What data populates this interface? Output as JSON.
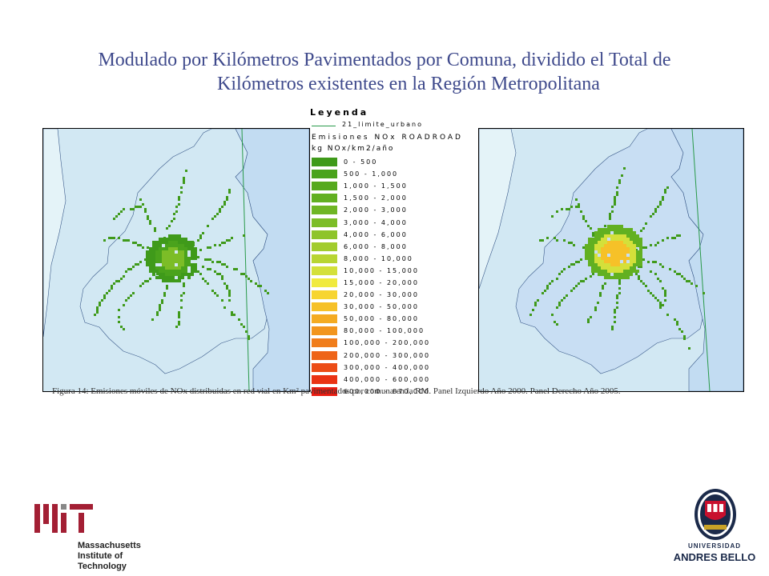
{
  "title": {
    "line1": "Modulado por Kilómetros Pavimentados por Comuna,  dividido el Total de",
    "line2": "Kilómetros existentes en la Región Metropolitana"
  },
  "legend": {
    "title": "Leyenda",
    "line_label": "21_limite_urbano",
    "layer_label": "Emisiones NOx ROADROAD",
    "unit_label": "kg NOx/km2/año",
    "classes": [
      {
        "label": "0 - 500",
        "color": "#3f9a1a"
      },
      {
        "label": "500 - 1,000",
        "color": "#4aa31c"
      },
      {
        "label": "1,000 - 1,500",
        "color": "#56a91e"
      },
      {
        "label": "1,500 - 2,000",
        "color": "#62b021"
      },
      {
        "label": "2,000 - 3,000",
        "color": "#6fb624"
      },
      {
        "label": "3,000 - 4,000",
        "color": "#7cbd27"
      },
      {
        "label": "4,000 - 6,000",
        "color": "#8ec42a"
      },
      {
        "label": "6,000 - 8,000",
        "color": "#a2cc2e"
      },
      {
        "label": "8,000 - 10,000",
        "color": "#b8d533"
      },
      {
        "label": "10,000 - 15,000",
        "color": "#d4e03a"
      },
      {
        "label": "15,000 - 20,000",
        "color": "#f0ea3e"
      },
      {
        "label": "20,000 - 30,000",
        "color": "#f7d531"
      },
      {
        "label": "30,000 - 50,000",
        "color": "#f6c128"
      },
      {
        "label": "50,000 - 80,000",
        "color": "#f4ab22"
      },
      {
        "label": "80,000 - 100,000",
        "color": "#f2951e"
      },
      {
        "label": "100,000 - 200,000",
        "color": "#f07d1b"
      },
      {
        "label": "200,000 - 300,000",
        "color": "#ee6418"
      },
      {
        "label": "300,000 - 400,000",
        "color": "#ec4c16"
      },
      {
        "label": "400,000 - 600,000",
        "color": "#ea3314"
      },
      {
        "label": "600,000 - 870,000",
        "color": "#e81d12"
      }
    ]
  },
  "caption": "Figura 14: Emisiones móviles de NOx distribuidas en red vial en Km² pavimentados por comuna en la RM.  Panel Izquierdo Año 2000. Panel Derecho Año 2005.",
  "logos": {
    "mit_line1": "Massachusetts",
    "mit_line2": "Institute of",
    "mit_line3": "Technology",
    "unab_line1": "UNIVERSIDAD",
    "unab_line2": "ANDRES BELLO"
  },
  "colors": {
    "title": "#3f4a8c",
    "map_land": "#d2e8f3",
    "map_region": "#c2dcf2",
    "region_outline": "#3a5a8a",
    "limit_line": "#2a9a4a",
    "mit_red": "#a31f34",
    "unab_navy": "#1b2a4a"
  }
}
